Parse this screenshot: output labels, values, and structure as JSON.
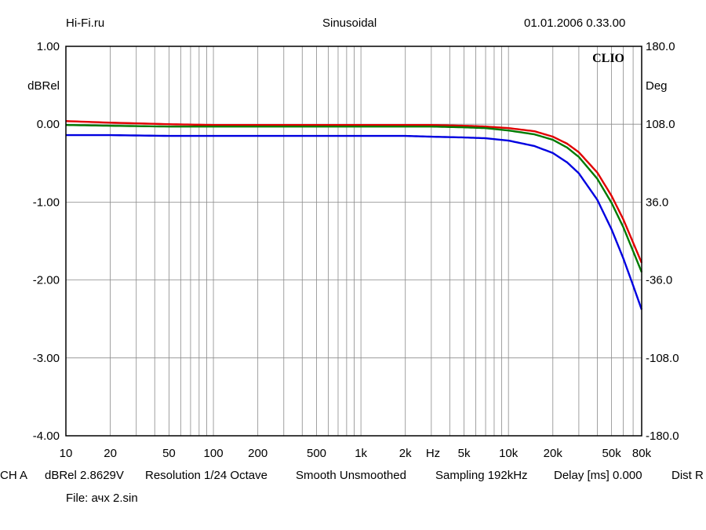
{
  "header": {
    "left": "Hi-Fi.ru",
    "center": "Sinusoidal",
    "right": "01.01.2006 0.33.00"
  },
  "footer": {
    "channel": "CH A",
    "units": "dBRel 2.8629V",
    "resolution": "Resolution 1/24 Octave",
    "smooth": "Smooth Unsmoothed",
    "sampling": "Sampling 192kHz",
    "delay": "Delay [ms] 0.000",
    "dist": "Dist R",
    "file": "File: ачх 2.sin"
  },
  "chart_data": {
    "type": "line",
    "logo": "CLIO",
    "x_scale": "log",
    "xlim": [
      10,
      80000
    ],
    "ylim": [
      -4.0,
      1.0
    ],
    "y2lim": [
      -180.0,
      180.0
    ],
    "ylabel": "dBRel",
    "y2label": "Deg",
    "xlabel": "Hz",
    "grid": true,
    "x_ticks": [
      {
        "value": 10,
        "label": "10"
      },
      {
        "value": 20,
        "label": "20"
      },
      {
        "value": 50,
        "label": "50"
      },
      {
        "value": 100,
        "label": "100"
      },
      {
        "value": 200,
        "label": "200"
      },
      {
        "value": 500,
        "label": "500"
      },
      {
        "value": 1000,
        "label": "1k"
      },
      {
        "value": 2000,
        "label": "2k"
      },
      {
        "value": 5000,
        "label": "5k"
      },
      {
        "value": 10000,
        "label": "10k"
      },
      {
        "value": 20000,
        "label": "20k"
      },
      {
        "value": 50000,
        "label": "50k"
      },
      {
        "value": 80000,
        "label": "80k"
      }
    ],
    "y_ticks": [
      {
        "value": 1.0,
        "label": "1.00"
      },
      {
        "value": 0.0,
        "label": "0.00"
      },
      {
        "value": -1.0,
        "label": "-1.00"
      },
      {
        "value": -2.0,
        "label": "-2.00"
      },
      {
        "value": -3.0,
        "label": "-3.00"
      },
      {
        "value": -4.0,
        "label": "-4.00"
      }
    ],
    "y2_ticks": [
      {
        "value": 180.0,
        "label": "180.0"
      },
      {
        "value": 108.0,
        "label": "108.0"
      },
      {
        "value": 36.0,
        "label": "36.0"
      },
      {
        "value": -36.0,
        "label": "-36.0"
      },
      {
        "value": -108.0,
        "label": "-108.0"
      },
      {
        "value": -180.0,
        "label": "-180.0"
      }
    ],
    "series": [
      {
        "color": "#e00000",
        "x": [
          10,
          20,
          50,
          100,
          500,
          1000,
          2000,
          3000,
          5000,
          7000,
          10000,
          15000,
          20000,
          25000,
          30000,
          40000,
          50000,
          60000,
          70000,
          80000
        ],
        "y": [
          0.04,
          0.02,
          0.0,
          -0.01,
          -0.01,
          -0.01,
          -0.01,
          -0.01,
          -0.02,
          -0.03,
          -0.05,
          -0.09,
          -0.16,
          -0.25,
          -0.36,
          -0.62,
          -0.92,
          -1.22,
          -1.52,
          -1.78
        ]
      },
      {
        "color": "#007a00",
        "x": [
          10,
          20,
          50,
          100,
          500,
          1000,
          2000,
          3000,
          5000,
          7000,
          10000,
          15000,
          20000,
          25000,
          30000,
          40000,
          50000,
          60000,
          70000,
          80000
        ],
        "y": [
          -0.01,
          -0.02,
          -0.03,
          -0.03,
          -0.03,
          -0.03,
          -0.03,
          -0.03,
          -0.04,
          -0.05,
          -0.08,
          -0.13,
          -0.2,
          -0.3,
          -0.42,
          -0.7,
          -1.01,
          -1.32,
          -1.63,
          -1.9
        ]
      },
      {
        "color": "#0000e0",
        "x": [
          10,
          20,
          50,
          100,
          500,
          1000,
          2000,
          3000,
          5000,
          7000,
          10000,
          15000,
          20000,
          25000,
          30000,
          40000,
          50000,
          60000,
          70000,
          80000
        ],
        "y": [
          -0.14,
          -0.14,
          -0.15,
          -0.15,
          -0.15,
          -0.15,
          -0.15,
          -0.16,
          -0.17,
          -0.18,
          -0.21,
          -0.28,
          -0.37,
          -0.49,
          -0.63,
          -0.97,
          -1.35,
          -1.72,
          -2.07,
          -2.38
        ]
      }
    ]
  }
}
